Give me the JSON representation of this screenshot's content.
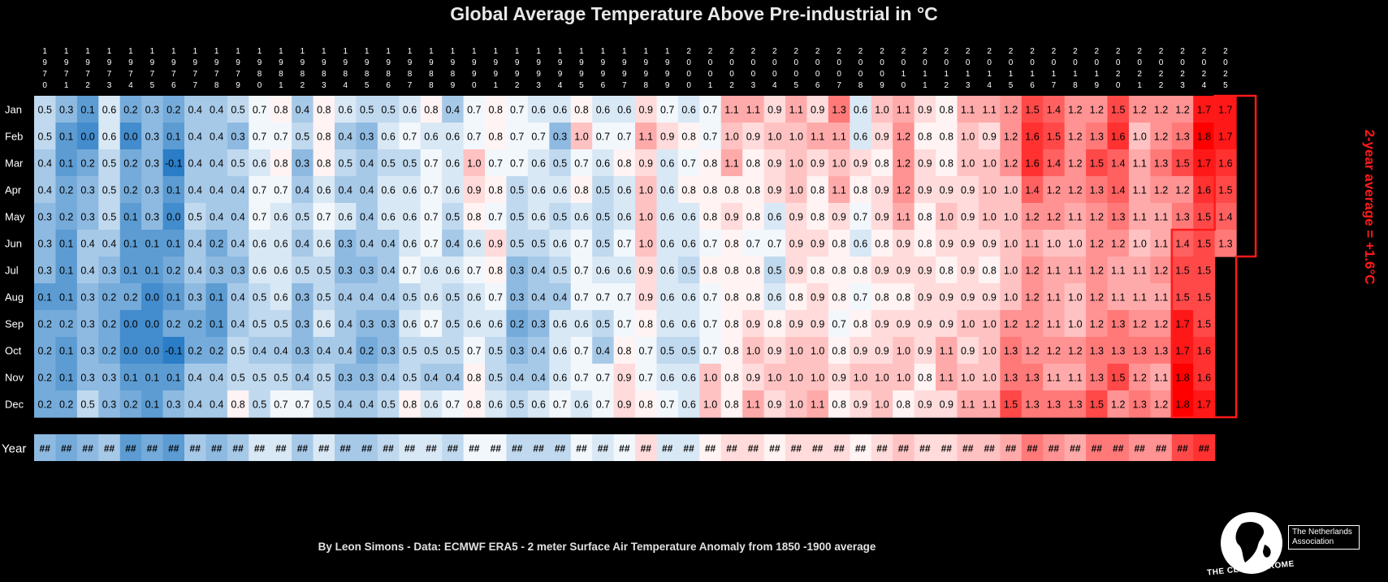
{
  "header": {
    "title": "Global Average Temperature Above Pre-industrial in °C"
  },
  "annotation": {
    "side_label": "2-year average = +1.6°C"
  },
  "footer": {
    "credit": "By Leon Simons - Data: ECMWF ERA5 - 2 meter Surface Air Temperature Anomaly from 1850 -1900 average"
  },
  "logo": {
    "name": "THE CLUB OF ROME",
    "assoc_line1": "The Netherlands",
    "assoc_line2": "Association"
  },
  "colors": {
    "background": "#000000",
    "cold": "#2a7dc6",
    "neutral": "#ffffff",
    "warm": "#ff0000",
    "highlight": "#ff1a1a"
  },
  "chart_data": {
    "type": "heatmap",
    "title": "Global Average Temperature Above Pre-industrial in °C",
    "unit": "°C",
    "x": [
      1970,
      1971,
      1972,
      1973,
      1974,
      1975,
      1976,
      1977,
      1978,
      1979,
      1980,
      1981,
      1982,
      1983,
      1984,
      1985,
      1986,
      1987,
      1988,
      1989,
      1990,
      1991,
      1992,
      1993,
      1994,
      1995,
      1996,
      1997,
      1998,
      1999,
      2000,
      2001,
      2002,
      2003,
      2004,
      2005,
      2006,
      2007,
      2008,
      2009,
      2010,
      2011,
      2012,
      2013,
      2014,
      2015,
      2016,
      2017,
      2018,
      2019,
      2020,
      2021,
      2022,
      2023,
      2024,
      2025
    ],
    "rows": [
      "Jan",
      "Feb",
      "Mar",
      "Apr",
      "May",
      "Jun",
      "Jul",
      "Aug",
      "Sep",
      "Oct",
      "Nov",
      "Dec"
    ],
    "summary_row_label": "Year",
    "summary_placeholder": "##",
    "color_scale": {
      "min": -0.1,
      "mid": 0.75,
      "max": 1.8,
      "low": "#2a7dc6",
      "mid_color": "#ffffff",
      "high": "#ff0000"
    },
    "values": [
      [
        0.5,
        0.3,
        0.1,
        0.6,
        0.2,
        0.3,
        0.2,
        0.4,
        0.4,
        0.5,
        0.7,
        0.8,
        0.4,
        0.8,
        0.6,
        0.5,
        0.5,
        0.6,
        0.8,
        0.4,
        0.7,
        0.8,
        0.7,
        0.6,
        0.6,
        0.8,
        0.6,
        0.6,
        0.9,
        0.7,
        0.6,
        0.7,
        1.1,
        1.1,
        0.9,
        1.1,
        0.9,
        1.3,
        0.6,
        1.0,
        1.1,
        0.9,
        0.8,
        1.1,
        1.1,
        1.2,
        1.5,
        1.4,
        1.2,
        1.2,
        1.5,
        1.2,
        1.2,
        1.2,
        1.7,
        1.7
      ],
      [
        0.5,
        0.1,
        0.0,
        0.6,
        0.0,
        0.3,
        0.1,
        0.4,
        0.4,
        0.3,
        0.7,
        0.7,
        0.5,
        0.8,
        0.4,
        0.3,
        0.6,
        0.7,
        0.6,
        0.6,
        0.7,
        0.8,
        0.7,
        0.7,
        0.3,
        1.0,
        0.7,
        0.7,
        1.1,
        0.9,
        0.8,
        0.7,
        1.0,
        0.9,
        1.0,
        1.0,
        1.1,
        1.1,
        0.6,
        0.9,
        1.2,
        0.8,
        0.8,
        1.0,
        0.9,
        1.2,
        1.6,
        1.5,
        1.2,
        1.3,
        1.6,
        1.0,
        1.2,
        1.3,
        1.8,
        1.7
      ],
      [
        0.4,
        0.1,
        0.2,
        0.5,
        0.2,
        0.3,
        -0.1,
        0.4,
        0.4,
        0.5,
        0.6,
        0.8,
        0.3,
        0.8,
        0.5,
        0.4,
        0.5,
        0.5,
        0.7,
        0.6,
        1.0,
        0.7,
        0.7,
        0.6,
        0.5,
        0.7,
        0.6,
        0.8,
        0.9,
        0.6,
        0.7,
        0.8,
        1.1,
        0.8,
        0.9,
        1.0,
        0.9,
        1.0,
        0.9,
        0.8,
        1.2,
        0.9,
        0.8,
        1.0,
        1.0,
        1.2,
        1.6,
        1.4,
        1.2,
        1.5,
        1.4,
        1.1,
        1.3,
        1.5,
        1.7,
        1.6
      ],
      [
        0.4,
        0.2,
        0.3,
        0.5,
        0.2,
        0.3,
        0.1,
        0.4,
        0.4,
        0.4,
        0.7,
        0.7,
        0.4,
        0.6,
        0.4,
        0.4,
        0.6,
        0.6,
        0.7,
        0.6,
        0.9,
        0.8,
        0.5,
        0.6,
        0.6,
        0.8,
        0.5,
        0.6,
        1.0,
        0.6,
        0.8,
        0.8,
        0.8,
        0.8,
        0.9,
        1.0,
        0.8,
        1.1,
        0.8,
        0.9,
        1.2,
        0.9,
        0.9,
        0.9,
        1.0,
        1.0,
        1.4,
        1.2,
        1.2,
        1.3,
        1.4,
        1.1,
        1.2,
        1.2,
        1.6,
        1.5
      ],
      [
        0.3,
        0.2,
        0.3,
        0.5,
        0.1,
        0.3,
        0.0,
        0.5,
        0.4,
        0.4,
        0.7,
        0.6,
        0.5,
        0.7,
        0.6,
        0.4,
        0.6,
        0.6,
        0.7,
        0.5,
        0.8,
        0.7,
        0.5,
        0.6,
        0.5,
        0.6,
        0.5,
        0.6,
        1.0,
        0.6,
        0.6,
        0.8,
        0.9,
        0.8,
        0.6,
        0.9,
        0.8,
        0.9,
        0.7,
        0.9,
        1.1,
        0.8,
        1.0,
        0.9,
        1.0,
        1.0,
        1.2,
        1.2,
        1.1,
        1.2,
        1.3,
        1.1,
        1.1,
        1.3,
        1.5,
        1.4
      ],
      [
        0.3,
        0.1,
        0.4,
        0.4,
        0.1,
        0.1,
        0.1,
        0.4,
        0.2,
        0.4,
        0.6,
        0.6,
        0.4,
        0.6,
        0.3,
        0.4,
        0.4,
        0.6,
        0.7,
        0.4,
        0.6,
        0.9,
        0.5,
        0.5,
        0.6,
        0.7,
        0.5,
        0.7,
        1.0,
        0.6,
        0.6,
        0.7,
        0.8,
        0.7,
        0.7,
        0.9,
        0.9,
        0.8,
        0.6,
        0.8,
        0.9,
        0.8,
        0.9,
        0.9,
        0.9,
        1.0,
        1.1,
        1.0,
        1.0,
        1.2,
        1.2,
        1.0,
        1.1,
        1.4,
        1.5,
        1.3
      ],
      [
        0.3,
        0.1,
        0.4,
        0.3,
        0.1,
        0.1,
        0.2,
        0.4,
        0.3,
        0.3,
        0.6,
        0.6,
        0.5,
        0.5,
        0.3,
        0.3,
        0.4,
        0.7,
        0.6,
        0.6,
        0.7,
        0.8,
        0.3,
        0.4,
        0.5,
        0.7,
        0.6,
        0.6,
        0.9,
        0.6,
        0.5,
        0.8,
        0.8,
        0.8,
        0.5,
        0.9,
        0.8,
        0.8,
        0.8,
        0.9,
        0.9,
        0.9,
        0.8,
        0.9,
        0.8,
        1.0,
        1.2,
        1.1,
        1.1,
        1.2,
        1.1,
        1.1,
        1.2,
        1.5,
        1.5,
        null
      ],
      [
        0.1,
        0.1,
        0.3,
        0.2,
        0.2,
        0.0,
        0.1,
        0.3,
        0.1,
        0.4,
        0.5,
        0.6,
        0.3,
        0.5,
        0.4,
        0.4,
        0.4,
        0.5,
        0.6,
        0.5,
        0.6,
        0.7,
        0.3,
        0.4,
        0.4,
        0.7,
        0.7,
        0.7,
        0.9,
        0.6,
        0.6,
        0.7,
        0.8,
        0.8,
        0.6,
        0.8,
        0.9,
        0.8,
        0.7,
        0.8,
        0.8,
        0.9,
        0.9,
        0.9,
        0.9,
        1.0,
        1.2,
        1.1,
        1.0,
        1.2,
        1.1,
        1.1,
        1.1,
        1.5,
        1.5,
        null
      ],
      [
        0.2,
        0.2,
        0.3,
        0.2,
        0.0,
        0.0,
        0.2,
        0.2,
        0.1,
        0.4,
        0.5,
        0.5,
        0.3,
        0.6,
        0.4,
        0.3,
        0.3,
        0.6,
        0.7,
        0.5,
        0.6,
        0.6,
        0.2,
        0.3,
        0.6,
        0.6,
        0.5,
        0.7,
        0.8,
        0.6,
        0.6,
        0.7,
        0.8,
        0.9,
        0.8,
        0.9,
        0.9,
        0.7,
        0.8,
        0.9,
        0.9,
        0.9,
        0.9,
        1.0,
        1.0,
        1.2,
        1.2,
        1.1,
        1.0,
        1.2,
        1.3,
        1.2,
        1.2,
        1.7,
        1.5,
        null
      ],
      [
        0.2,
        0.1,
        0.3,
        0.2,
        0.0,
        0.0,
        -0.1,
        0.2,
        0.2,
        0.5,
        0.4,
        0.4,
        0.3,
        0.4,
        0.4,
        0.2,
        0.3,
        0.5,
        0.5,
        0.5,
        0.7,
        0.5,
        0.3,
        0.4,
        0.6,
        0.7,
        0.4,
        0.8,
        0.7,
        0.5,
        0.5,
        0.7,
        0.8,
        1.0,
        0.9,
        1.0,
        1.0,
        0.8,
        0.9,
        0.9,
        1.0,
        0.9,
        1.1,
        0.9,
        1.0,
        1.3,
        1.2,
        1.2,
        1.2,
        1.3,
        1.3,
        1.3,
        1.3,
        1.7,
        1.6,
        null
      ],
      [
        0.2,
        0.1,
        0.3,
        0.3,
        0.1,
        0.1,
        0.1,
        0.4,
        0.4,
        0.5,
        0.5,
        0.5,
        0.4,
        0.5,
        0.3,
        0.3,
        0.4,
        0.5,
        0.4,
        0.4,
        0.8,
        0.5,
        0.4,
        0.4,
        0.6,
        0.7,
        0.7,
        0.9,
        0.7,
        0.6,
        0.6,
        1.0,
        0.8,
        0.9,
        1.0,
        1.0,
        1.0,
        0.9,
        1.0,
        1.0,
        1.0,
        0.8,
        1.1,
        1.0,
        1.0,
        1.3,
        1.3,
        1.1,
        1.1,
        1.3,
        1.5,
        1.2,
        1.1,
        1.8,
        1.6,
        null
      ],
      [
        0.2,
        0.2,
        0.5,
        0.3,
        0.2,
        0.1,
        0.3,
        0.4,
        0.4,
        0.8,
        0.5,
        0.7,
        0.7,
        0.5,
        0.4,
        0.4,
        0.5,
        0.8,
        0.6,
        0.7,
        0.8,
        0.6,
        0.5,
        0.6,
        0.7,
        0.6,
        0.7,
        0.9,
        0.8,
        0.7,
        0.6,
        1.0,
        0.8,
        1.1,
        0.9,
        1.0,
        1.1,
        0.8,
        0.9,
        1.0,
        0.8,
        0.9,
        0.9,
        1.1,
        1.1,
        1.5,
        1.3,
        1.3,
        1.3,
        1.5,
        1.2,
        1.3,
        1.2,
        1.8,
        1.7,
        null
      ]
    ],
    "year_color_values": [
      0.3,
      0.2,
      0.3,
      0.4,
      0.1,
      0.2,
      0.1,
      0.4,
      0.3,
      0.4,
      0.6,
      0.6,
      0.4,
      0.6,
      0.4,
      0.4,
      0.5,
      0.6,
      0.6,
      0.5,
      0.7,
      0.7,
      0.5,
      0.5,
      0.5,
      0.7,
      0.6,
      0.7,
      0.9,
      0.6,
      0.6,
      0.8,
      0.9,
      0.9,
      0.8,
      0.9,
      0.9,
      0.9,
      0.8,
      0.9,
      1.0,
      0.9,
      0.9,
      1.0,
      1.0,
      1.1,
      1.3,
      1.2,
      1.1,
      1.3,
      1.3,
      1.2,
      1.2,
      1.5,
      1.6
    ],
    "highlight": {
      "from_year": 2023,
      "from_month": "Jun",
      "to_year": 2025,
      "to_month": "Jun",
      "label": "2-year average = +1.6°C"
    },
    "grid": false
  }
}
